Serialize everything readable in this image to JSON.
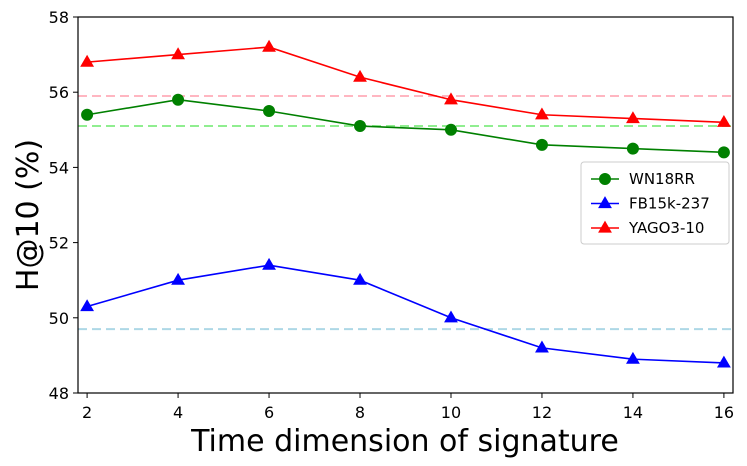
{
  "chart_data": {
    "type": "line",
    "title": "",
    "xlabel": "Time dimension of signature",
    "ylabel": "H@10 (%)",
    "x": [
      2,
      4,
      6,
      8,
      10,
      12,
      14,
      16
    ],
    "xlim": [
      1.8,
      16.2
    ],
    "ylim": [
      48,
      58
    ],
    "xticks": [
      2,
      4,
      6,
      8,
      10,
      12,
      14,
      16
    ],
    "yticks": [
      48,
      50,
      52,
      54,
      56,
      58
    ],
    "grid": false,
    "legend_position": "center-right",
    "series": [
      {
        "name": "WN18RR",
        "color": "#008000",
        "marker": "circle",
        "values": [
          55.4,
          55.8,
          55.5,
          55.1,
          55.0,
          54.6,
          54.5,
          54.4
        ]
      },
      {
        "name": "FB15k-237",
        "color": "#0000ff",
        "marker": "triangle",
        "values": [
          50.3,
          51.0,
          51.4,
          51.0,
          50.0,
          49.2,
          48.9,
          48.8
        ]
      },
      {
        "name": "YAGO3-10",
        "color": "#ff0000",
        "marker": "triangle",
        "values": [
          56.8,
          57.0,
          57.2,
          56.4,
          55.8,
          55.4,
          55.3,
          55.2
        ]
      }
    ],
    "baselines": [
      {
        "series": "YAGO3-10",
        "value": 55.9,
        "color": "#ffb6c1",
        "style": "dashed"
      },
      {
        "series": "WN18RR",
        "value": 55.1,
        "color": "#90ee90",
        "style": "dashed"
      },
      {
        "series": "FB15k-237",
        "value": 49.7,
        "color": "#add8e6",
        "style": "dashed"
      }
    ]
  }
}
